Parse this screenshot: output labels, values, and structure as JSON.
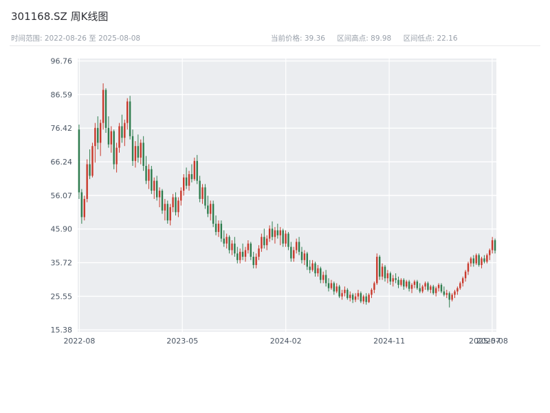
{
  "header": {
    "title": "301168.SZ 周K线图",
    "time_range_label": "时间范围: 2022-08-26 至 2025-08-08",
    "stats": {
      "current_label": "当前价格: 39.36",
      "high_label": "区间高点: 89.98",
      "low_label": "区间低点: 22.16"
    }
  },
  "chart_data": {
    "type": "candlestick",
    "symbol": "301168.SZ",
    "period": "weekly",
    "title": "301168.SZ 周K线图",
    "start_date": "2022-08-26",
    "end_date": "2025-08-08",
    "current_price": 39.36,
    "range_high": 89.98,
    "range_low": 22.16,
    "ylim": [
      14.8,
      97.5
    ],
    "grid": true,
    "y_ticks": [
      96.76,
      86.59,
      76.42,
      66.24,
      56.07,
      45.9,
      35.72,
      25.55,
      15.38
    ],
    "x_ticks": [
      {
        "label": "2022-08",
        "pos": 0.004,
        "grid": true
      },
      {
        "label": "2023-05",
        "pos": 0.25,
        "grid": true
      },
      {
        "label": "2024-02",
        "pos": 0.497,
        "grid": true
      },
      {
        "label": "2024-11",
        "pos": 0.744,
        "grid": true
      },
      {
        "label": "2025-07",
        "pos": 0.972,
        "grid": false
      },
      {
        "label": "2025-08",
        "pos": 0.99,
        "grid": true
      }
    ],
    "colors": {
      "up": "#c9392c",
      "down": "#2e7d4e",
      "plot_bg": "#ebedf0",
      "grid_line": "#ffffff",
      "tick_text": "#4a5563"
    },
    "candles": [
      [
        76.0,
        77.5,
        55.0,
        57.0
      ],
      [
        57.0,
        58.0,
        47.5,
        49.5
      ],
      [
        49.5,
        56.0,
        48.5,
        55.0
      ],
      [
        55.0,
        67.0,
        54.0,
        65.5
      ],
      [
        65.5,
        70.0,
        61.0,
        62.0
      ],
      [
        62.0,
        72.0,
        61.5,
        71.0
      ],
      [
        71.0,
        78.0,
        66.0,
        76.5
      ],
      [
        76.5,
        80.0,
        70.0,
        72.0
      ],
      [
        72.0,
        79.0,
        68.0,
        78.0
      ],
      [
        78.0,
        89.98,
        76.0,
        88.0
      ],
      [
        88.0,
        88.5,
        75.0,
        76.5
      ],
      [
        76.5,
        80.0,
        70.5,
        71.5
      ],
      [
        71.5,
        77.0,
        69.0,
        75.5
      ],
      [
        75.5,
        76.0,
        64.0,
        65.5
      ],
      [
        65.5,
        72.0,
        63.0,
        70.5
      ],
      [
        70.5,
        78.0,
        69.0,
        77.0
      ],
      [
        77.0,
        80.5,
        72.0,
        73.5
      ],
      [
        73.5,
        79.0,
        71.0,
        78.0
      ],
      [
        78.0,
        85.5,
        76.0,
        84.5
      ],
      [
        84.5,
        86.2,
        73.0,
        74.0
      ],
      [
        74.0,
        76.0,
        65.0,
        66.5
      ],
      [
        66.5,
        72.5,
        64.5,
        71.0
      ],
      [
        71.0,
        74.5,
        66.0,
        67.5
      ],
      [
        67.5,
        73.0,
        65.5,
        72.0
      ],
      [
        72.0,
        74.0,
        63.5,
        65.0
      ],
      [
        65.0,
        68.0,
        59.5,
        60.5
      ],
      [
        60.5,
        65.5,
        58.0,
        64.0
      ],
      [
        64.0,
        65.0,
        56.5,
        57.5
      ],
      [
        57.5,
        61.5,
        55.0,
        60.5
      ],
      [
        60.5,
        62.0,
        54.5,
        55.5
      ],
      [
        55.5,
        58.5,
        52.5,
        57.5
      ],
      [
        57.5,
        58.0,
        50.5,
        51.5
      ],
      [
        51.5,
        55.0,
        48.5,
        53.5
      ],
      [
        53.5,
        54.5,
        47.5,
        48.5
      ],
      [
        48.5,
        53.5,
        47.0,
        52.5
      ],
      [
        52.5,
        56.5,
        51.0,
        55.5
      ],
      [
        55.5,
        57.0,
        50.0,
        51.0
      ],
      [
        51.0,
        55.5,
        49.5,
        54.5
      ],
      [
        54.5,
        58.5,
        53.0,
        57.5
      ],
      [
        57.5,
        62.5,
        56.0,
        61.5
      ],
      [
        61.5,
        64.5,
        58.0,
        59.0
      ],
      [
        59.0,
        63.5,
        57.5,
        62.5
      ],
      [
        62.5,
        65.5,
        60.0,
        61.0
      ],
      [
        61.0,
        67.5,
        60.5,
        66.5
      ],
      [
        66.5,
        68.3,
        59.5,
        60.5
      ],
      [
        60.5,
        62.0,
        54.0,
        55.0
      ],
      [
        55.0,
        59.5,
        53.5,
        58.5
      ],
      [
        58.5,
        59.5,
        52.0,
        53.0
      ],
      [
        53.0,
        56.0,
        49.5,
        50.5
      ],
      [
        50.5,
        54.5,
        48.5,
        53.5
      ],
      [
        53.5,
        54.5,
        46.5,
        47.5
      ],
      [
        47.5,
        50.0,
        44.0,
        45.0
      ],
      [
        45.0,
        48.5,
        43.5,
        47.5
      ],
      [
        47.5,
        48.5,
        42.0,
        43.0
      ],
      [
        43.0,
        45.5,
        40.5,
        41.5
      ],
      [
        41.5,
        44.5,
        40.0,
        43.5
      ],
      [
        43.5,
        44.0,
        38.5,
        39.5
      ],
      [
        39.5,
        42.5,
        38.0,
        41.5
      ],
      [
        41.5,
        43.5,
        37.5,
        38.5
      ],
      [
        38.5,
        40.5,
        35.5,
        36.5
      ],
      [
        36.5,
        40.0,
        35.5,
        39.0
      ],
      [
        39.0,
        41.5,
        36.5,
        37.5
      ],
      [
        37.5,
        40.5,
        36.0,
        39.5
      ],
      [
        39.5,
        42.5,
        38.5,
        41.5
      ],
      [
        41.5,
        42.0,
        36.5,
        37.5
      ],
      [
        37.5,
        39.0,
        34.0,
        35.0
      ],
      [
        35.0,
        38.5,
        34.0,
        37.5
      ],
      [
        37.5,
        41.0,
        36.5,
        40.0
      ],
      [
        40.0,
        44.5,
        39.0,
        43.5
      ],
      [
        43.5,
        46.0,
        40.0,
        41.0
      ],
      [
        41.0,
        44.0,
        39.5,
        43.0
      ],
      [
        43.0,
        47.0,
        42.0,
        46.0
      ],
      [
        46.0,
        48.2,
        42.5,
        43.5
      ],
      [
        43.5,
        46.5,
        41.5,
        45.5
      ],
      [
        45.5,
        47.5,
        43.0,
        44.0
      ],
      [
        44.0,
        46.5,
        41.0,
        45.5
      ],
      [
        45.5,
        46.0,
        40.5,
        41.5
      ],
      [
        41.5,
        45.5,
        40.5,
        44.5
      ],
      [
        44.5,
        45.0,
        39.5,
        40.5
      ],
      [
        40.5,
        42.0,
        36.0,
        37.0
      ],
      [
        37.0,
        40.5,
        36.0,
        39.5
      ],
      [
        39.5,
        43.0,
        38.5,
        42.0
      ],
      [
        42.0,
        43.5,
        38.0,
        39.0
      ],
      [
        39.0,
        40.5,
        35.5,
        36.5
      ],
      [
        36.5,
        39.5,
        35.0,
        38.5
      ],
      [
        38.5,
        39.0,
        33.5,
        34.5
      ],
      [
        34.5,
        36.5,
        32.5,
        33.5
      ],
      [
        33.5,
        36.5,
        33.0,
        35.5
      ],
      [
        35.5,
        36.0,
        31.5,
        32.5
      ],
      [
        32.5,
        35.0,
        31.5,
        34.0
      ],
      [
        34.0,
        34.5,
        29.5,
        30.5
      ],
      [
        30.5,
        33.0,
        29.5,
        32.0
      ],
      [
        32.0,
        33.5,
        28.5,
        29.5
      ],
      [
        29.5,
        31.0,
        27.0,
        28.0
      ],
      [
        28.0,
        30.5,
        27.5,
        29.5
      ],
      [
        29.5,
        30.0,
        26.0,
        27.0
      ],
      [
        27.0,
        29.5,
        26.5,
        28.5
      ],
      [
        28.5,
        29.0,
        25.0,
        25.5
      ],
      [
        25.5,
        27.5,
        24.5,
        26.5
      ],
      [
        26.5,
        28.5,
        25.5,
        27.5
      ],
      [
        27.5,
        28.0,
        24.5,
        25.0
      ],
      [
        25.0,
        27.0,
        24.0,
        26.0
      ],
      [
        26.0,
        26.5,
        23.5,
        24.5
      ],
      [
        24.5,
        26.5,
        23.8,
        25.5
      ],
      [
        25.5,
        27.5,
        24.5,
        26.5
      ],
      [
        26.5,
        27.0,
        23.5,
        24.0
      ],
      [
        24.0,
        26.0,
        23.2,
        25.5
      ],
      [
        25.5,
        26.5,
        23.0,
        23.8
      ],
      [
        23.8,
        26.5,
        23.5,
        26.0
      ],
      [
        26.0,
        28.0,
        25.0,
        27.5
      ],
      [
        27.5,
        30.0,
        26.5,
        29.5
      ],
      [
        29.5,
        38.5,
        29.0,
        37.5
      ],
      [
        37.5,
        38.0,
        30.5,
        31.5
      ],
      [
        31.5,
        35.5,
        30.5,
        34.5
      ],
      [
        34.5,
        35.0,
        30.0,
        31.0
      ],
      [
        31.0,
        33.5,
        29.5,
        32.5
      ],
      [
        32.5,
        33.0,
        29.0,
        30.0
      ],
      [
        30.0,
        32.0,
        28.5,
        31.0
      ],
      [
        31.0,
        32.5,
        29.5,
        30.5
      ],
      [
        30.5,
        31.5,
        28.0,
        29.0
      ],
      [
        29.0,
        31.0,
        28.5,
        30.5
      ],
      [
        30.5,
        31.0,
        27.5,
        28.5
      ],
      [
        28.5,
        30.5,
        28.0,
        30.0
      ],
      [
        30.0,
        30.5,
        27.0,
        27.8
      ],
      [
        27.8,
        29.5,
        26.5,
        29.0
      ],
      [
        29.0,
        30.5,
        28.0,
        30.0
      ],
      [
        30.0,
        30.5,
        27.5,
        28.0
      ],
      [
        28.0,
        29.5,
        26.5,
        27.0
      ],
      [
        27.0,
        29.0,
        26.5,
        28.5
      ],
      [
        28.5,
        30.0,
        27.5,
        29.5
      ],
      [
        29.5,
        30.0,
        27.0,
        27.5
      ],
      [
        27.5,
        29.0,
        26.5,
        28.5
      ],
      [
        28.5,
        29.0,
        26.0,
        26.5
      ],
      [
        26.5,
        28.5,
        25.5,
        28.0
      ],
      [
        28.0,
        29.5,
        27.0,
        29.0
      ],
      [
        29.0,
        29.5,
        26.5,
        27.0
      ],
      [
        27.0,
        28.5,
        25.5,
        26.0
      ],
      [
        26.0,
        27.5,
        25.0,
        26.5
      ],
      [
        26.5,
        27.0,
        22.16,
        24.5
      ],
      [
        24.5,
        26.5,
        24.0,
        26.0
      ],
      [
        26.0,
        27.5,
        25.0,
        27.0
      ],
      [
        27.0,
        28.5,
        26.0,
        28.0
      ],
      [
        28.0,
        30.0,
        27.5,
        29.5
      ],
      [
        29.5,
        31.5,
        28.5,
        31.0
      ],
      [
        31.0,
        33.5,
        30.0,
        33.0
      ],
      [
        33.0,
        36.0,
        32.0,
        35.5
      ],
      [
        35.5,
        37.5,
        34.5,
        37.0
      ],
      [
        37.0,
        38.0,
        34.5,
        35.5
      ],
      [
        35.5,
        38.5,
        35.0,
        38.0
      ],
      [
        38.0,
        38.5,
        34.5,
        35.0
      ],
      [
        35.0,
        37.5,
        34.0,
        37.0
      ],
      [
        37.0,
        38.0,
        35.5,
        36.0
      ],
      [
        36.0,
        38.5,
        35.5,
        38.0
      ],
      [
        38.0,
        40.0,
        36.5,
        39.5
      ],
      [
        39.5,
        43.5,
        38.5,
        42.5
      ],
      [
        42.5,
        43.0,
        38.5,
        39.36
      ]
    ]
  }
}
